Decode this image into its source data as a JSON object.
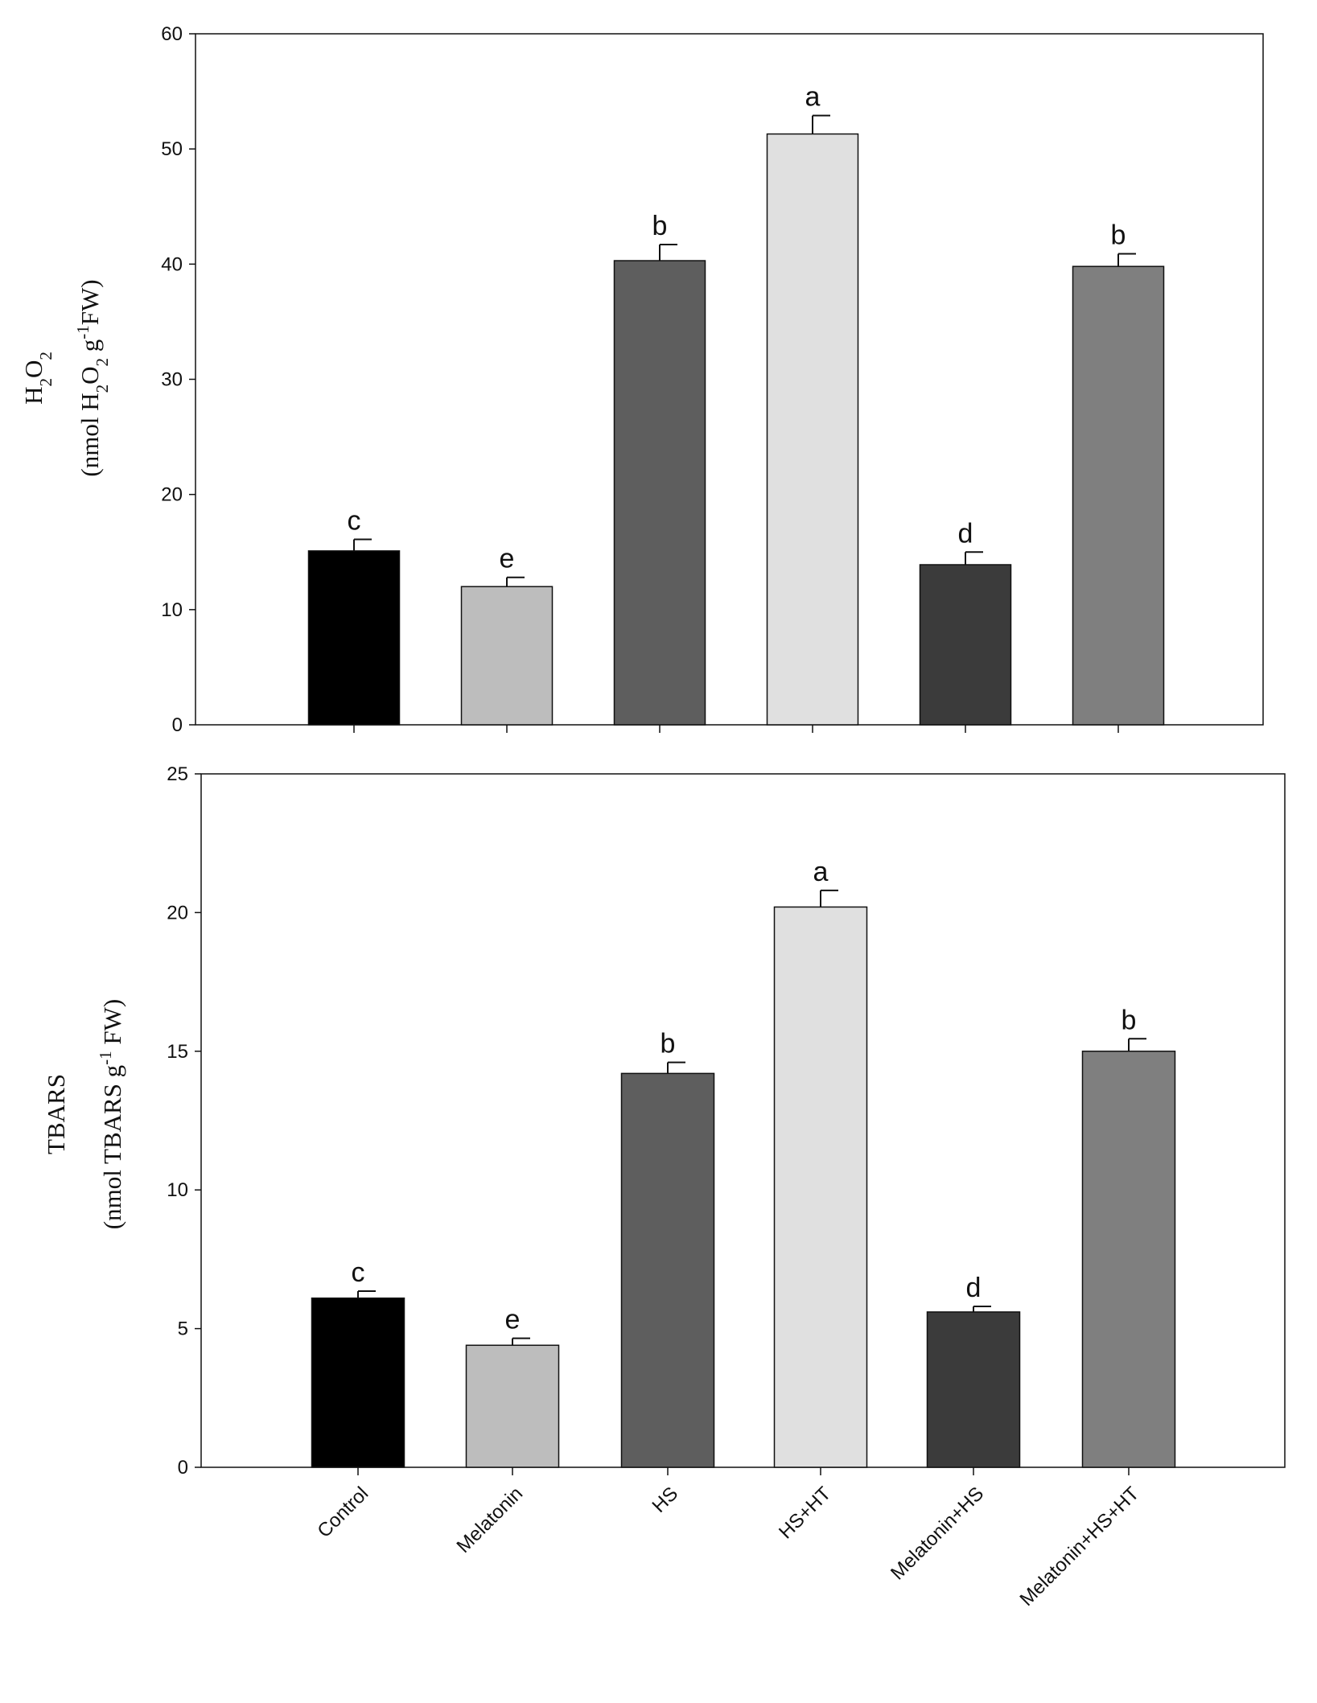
{
  "chart_data": [
    {
      "type": "bar",
      "ylabel_line1": "H",
      "ylabel_line1_sub": "2",
      "ylabel_line1_b": "O",
      "ylabel_line1_sub2": "2",
      "ylabel_line2_prefix": "(nmol H",
      "ylabel_line2_sub1": "2",
      "ylabel_line2_mid": "O",
      "ylabel_line2_sub2": "2",
      "ylabel_line2_g": " g",
      "ylabel_line2_sup": "-1",
      "ylabel_line2_suffix": "FW)",
      "ylim": [
        0,
        60
      ],
      "yticks": [
        0,
        10,
        20,
        30,
        40,
        50,
        60
      ],
      "categories": [
        "Control",
        "Melatonin",
        "HS",
        "HS+HT",
        "Melatonin+HS",
        "Melatonin+HS+HT"
      ],
      "values": [
        15.1,
        12.0,
        40.3,
        51.3,
        13.9,
        39.8
      ],
      "errors": [
        1.0,
        0.8,
        1.4,
        1.6,
        1.1,
        1.1
      ],
      "significance": [
        "c",
        "e",
        "b",
        "a",
        "d",
        "b"
      ],
      "colors": [
        "#000000",
        "#bdbdbd",
        "#5e5e5e",
        "#e0e0e0",
        "#3b3b3b",
        "#7f7f7f"
      ]
    },
    {
      "type": "bar",
      "ylabel_line1": "TBARS",
      "ylabel_line2_prefix": "(nmol TBARS  g",
      "ylabel_line2_sup": "-1",
      "ylabel_line2_suffix": " FW)",
      "ylim": [
        0,
        25
      ],
      "yticks": [
        0,
        5,
        10,
        15,
        20,
        25
      ],
      "categories": [
        "Control",
        "Melatonin",
        "HS",
        "HS+HT",
        "Melatonin+HS",
        "Melatonin+HS+HT"
      ],
      "values": [
        6.1,
        4.4,
        14.2,
        20.2,
        5.6,
        15.0
      ],
      "errors": [
        0.25,
        0.25,
        0.4,
        0.6,
        0.2,
        0.45
      ],
      "significance": [
        "c",
        "e",
        "b",
        "a",
        "d",
        "b"
      ],
      "colors": [
        "#000000",
        "#bdbdbd",
        "#5e5e5e",
        "#e0e0e0",
        "#3b3b3b",
        "#7f7f7f"
      ]
    }
  ]
}
